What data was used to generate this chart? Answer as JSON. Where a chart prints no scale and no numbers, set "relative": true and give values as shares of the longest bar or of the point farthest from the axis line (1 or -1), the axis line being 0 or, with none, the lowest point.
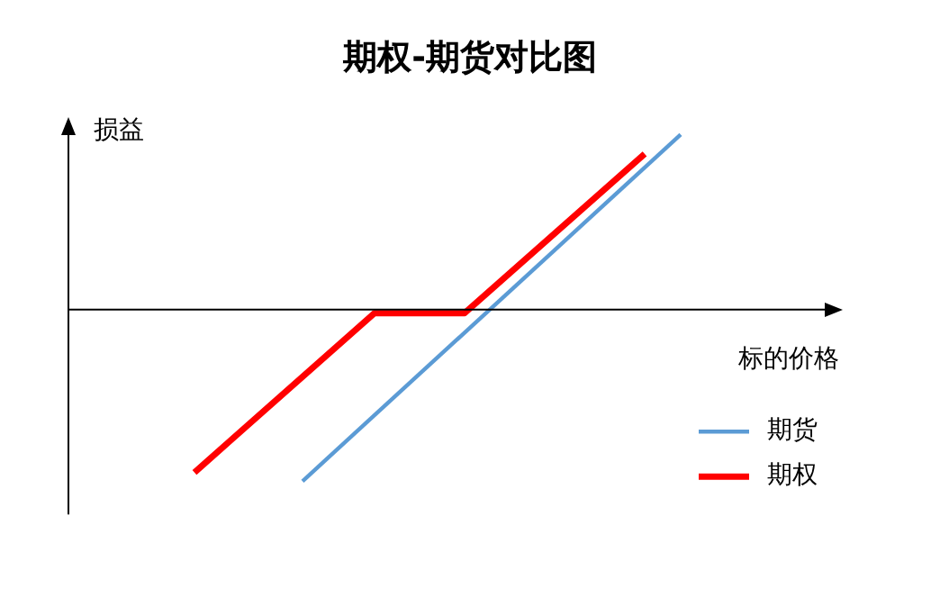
{
  "chart_data": {
    "type": "line",
    "title": "期权-期货对比图",
    "xlabel": "标的价格",
    "ylabel": "损益",
    "relative": true,
    "grid": false,
    "legend": "bottom right",
    "marker": "none",
    "line_style": "solid",
    "categories": [
      null,
      null,
      null,
      null,
      null,
      null,
      null,
      null,
      null,
      null,
      null,
      null,
      null,
      null,
      null,
      null,
      null,
      null,
      null,
      null,
      null,
      null,
      null,
      null,
      null,
      null,
      null,
      null,
      null,
      null,
      null,
      null,
      null,
      null,
      null,
      null,
      null,
      null,
      null,
      null,
      null,
      null,
      null,
      null
    ],
    "series": [
      {
        "name": "期货",
        "color": "#5b9bd5",
        "values": [
          null,
          null,
          null,
          null,
          null,
          null,
          null,
          null,
          null,
          null,
          null,
          null,
          null,
          -0.98,
          null,
          null,
          null,
          null,
          null,
          null,
          null,
          null,
          null,
          null,
          null,
          null,
          null,
          null,
          null,
          null,
          null,
          null,
          null,
          null,
          1,
          null,
          null,
          null,
          null,
          null,
          null,
          null,
          null,
          null
        ]
      },
      {
        "name": "期权",
        "color": "#ff0000",
        "values": [
          null,
          null,
          null,
          null,
          null,
          null,
          null,
          -0.93,
          null,
          null,
          null,
          null,
          null,
          null,
          null,
          null,
          null,
          -0.02,
          null,
          null,
          null,
          null,
          -0.02,
          null,
          null,
          null,
          null,
          null,
          null,
          null,
          null,
          null,
          0.89,
          null,
          null,
          null,
          null,
          null,
          null,
          null,
          null,
          null,
          null,
          null
        ]
      }
    ]
  }
}
